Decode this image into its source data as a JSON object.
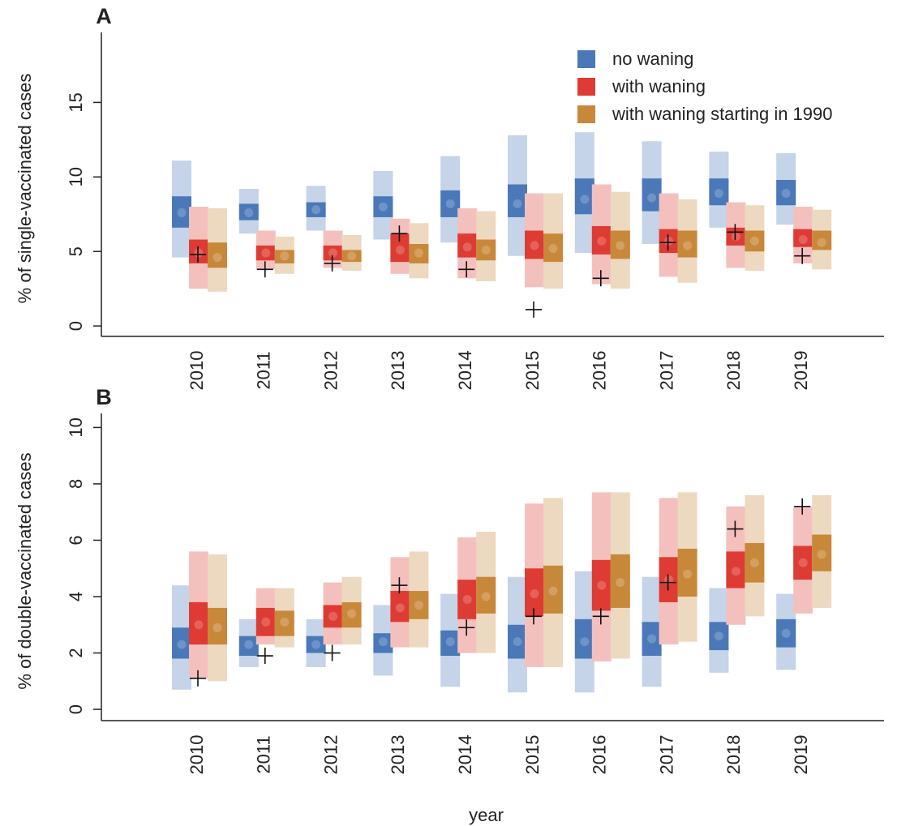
{
  "chart_data": [
    {
      "type": "interval",
      "title": "A",
      "ylabel": "% of single-vaccinated cases",
      "categories": [
        "2010",
        "2011",
        "2012",
        "2013",
        "2014",
        "2015",
        "2016",
        "2017",
        "2018",
        "2019"
      ],
      "ylim": [
        -0.7,
        19.7
      ],
      "yticks": [
        0,
        5,
        10,
        15
      ],
      "legend": "top-right",
      "series": [
        {
          "name": "no waning",
          "color": "#4a78b8",
          "low95": [
            4.6,
            6.2,
            6.4,
            5.8,
            5.6,
            4.7,
            4.9,
            5.5,
            6.6,
            6.8
          ],
          "high95": [
            11.1,
            9.2,
            9.4,
            10.4,
            11.4,
            12.8,
            13.0,
            12.4,
            11.7,
            11.6
          ],
          "low50": [
            6.6,
            7.1,
            7.3,
            7.3,
            7.3,
            7.3,
            7.5,
            7.7,
            8.1,
            8.1
          ],
          "high50": [
            8.7,
            8.2,
            8.3,
            8.7,
            9.1,
            9.5,
            9.9,
            9.9,
            9.9,
            9.8
          ],
          "median": [
            7.6,
            7.6,
            7.8,
            8.0,
            8.2,
            8.2,
            8.5,
            8.6,
            8.9,
            8.9
          ]
        },
        {
          "name": "with waning",
          "color": "#dd3b33",
          "low95": [
            2.5,
            3.8,
            3.9,
            3.5,
            3.2,
            2.6,
            2.8,
            3.3,
            3.9,
            4.2
          ],
          "high95": [
            8.0,
            6.4,
            6.4,
            7.2,
            7.9,
            8.9,
            9.5,
            8.9,
            8.3,
            8.0
          ],
          "low50": [
            4.2,
            4.4,
            4.4,
            4.3,
            4.6,
            4.5,
            4.8,
            4.9,
            5.4,
            5.3
          ],
          "high50": [
            5.8,
            5.4,
            5.4,
            6.2,
            6.2,
            6.4,
            6.7,
            6.5,
            6.6,
            6.5
          ],
          "median": [
            4.9,
            4.9,
            4.9,
            5.1,
            5.3,
            5.4,
            5.7,
            5.7,
            6.0,
            5.8
          ]
        },
        {
          "name": "with waning starting in 1990",
          "color": "#c8883a",
          "low95": [
            2.3,
            3.5,
            3.7,
            3.2,
            3.0,
            2.5,
            2.5,
            2.9,
            3.7,
            3.8
          ],
          "high95": [
            7.9,
            6.0,
            6.1,
            6.9,
            7.7,
            8.9,
            9.0,
            8.5,
            8.1,
            7.8
          ],
          "low50": [
            3.9,
            4.2,
            4.3,
            4.2,
            4.4,
            4.3,
            4.5,
            4.6,
            5.0,
            5.1
          ],
          "high50": [
            5.6,
            5.1,
            5.1,
            5.5,
            5.8,
            6.2,
            6.4,
            6.4,
            6.4,
            6.4
          ],
          "median": [
            4.6,
            4.7,
            4.7,
            4.9,
            5.1,
            5.2,
            5.4,
            5.4,
            5.7,
            5.6
          ]
        }
      ],
      "observed": [
        4.8,
        3.8,
        4.2,
        6.2,
        3.8,
        1.1,
        3.2,
        5.6,
        6.3,
        4.7
      ]
    },
    {
      "type": "interval",
      "title": "B",
      "ylabel": "% of double-vaccinated cases",
      "xlabel": "year",
      "categories": [
        "2010",
        "2011",
        "2012",
        "2013",
        "2014",
        "2015",
        "2016",
        "2017",
        "2018",
        "2019"
      ],
      "ylim": [
        -0.4,
        10.5
      ],
      "yticks": [
        0,
        2,
        4,
        6,
        8,
        10
      ],
      "series": [
        {
          "color": "#4a78b8",
          "low95": [
            0.7,
            1.5,
            1.5,
            1.2,
            0.8,
            0.6,
            0.6,
            0.8,
            1.3,
            1.4
          ],
          "high95": [
            4.4,
            3.2,
            3.2,
            3.7,
            4.1,
            4.7,
            4.9,
            4.7,
            4.3,
            4.1
          ],
          "low50": [
            1.8,
            1.9,
            2.0,
            2.0,
            1.9,
            1.8,
            1.8,
            1.9,
            2.1,
            2.2
          ],
          "high50": [
            2.9,
            2.6,
            2.6,
            2.7,
            2.8,
            3.0,
            3.2,
            3.1,
            3.1,
            3.2
          ],
          "median": [
            2.3,
            2.3,
            2.3,
            2.4,
            2.4,
            2.4,
            2.4,
            2.5,
            2.6,
            2.7
          ]
        },
        {
          "color": "#dd3b33",
          "low95": [
            1.1,
            2.3,
            2.3,
            2.2,
            2.0,
            1.5,
            1.7,
            2.3,
            3.0,
            3.4
          ],
          "high95": [
            5.6,
            4.3,
            4.5,
            5.4,
            6.1,
            7.3,
            7.7,
            7.5,
            7.2,
            7.2
          ],
          "low50": [
            2.3,
            2.6,
            2.9,
            3.1,
            3.2,
            3.3,
            3.5,
            3.8,
            4.3,
            4.6
          ],
          "high50": [
            3.8,
            3.6,
            3.7,
            4.2,
            4.6,
            5.0,
            5.3,
            5.4,
            5.6,
            5.8
          ],
          "median": [
            3.0,
            3.1,
            3.3,
            3.6,
            3.9,
            4.1,
            4.4,
            4.6,
            4.9,
            5.2
          ]
        },
        {
          "color": "#c8883a",
          "low95": [
            1.0,
            2.2,
            2.3,
            2.2,
            2.0,
            1.5,
            1.8,
            2.4,
            3.3,
            3.6
          ],
          "high95": [
            5.5,
            4.3,
            4.7,
            5.6,
            6.3,
            7.5,
            7.7,
            7.7,
            7.6,
            7.6
          ],
          "low50": [
            2.3,
            2.6,
            2.9,
            3.2,
            3.4,
            3.4,
            3.6,
            4.0,
            4.5,
            4.9
          ],
          "high50": [
            3.6,
            3.5,
            3.8,
            4.2,
            4.7,
            5.1,
            5.5,
            5.7,
            5.9,
            6.2
          ],
          "median": [
            2.9,
            3.1,
            3.4,
            3.7,
            4.0,
            4.2,
            4.5,
            4.8,
            5.2,
            5.5
          ]
        }
      ],
      "observed": [
        1.1,
        1.9,
        2.0,
        4.4,
        2.9,
        3.3,
        3.3,
        4.5,
        6.4,
        7.2
      ]
    }
  ]
}
